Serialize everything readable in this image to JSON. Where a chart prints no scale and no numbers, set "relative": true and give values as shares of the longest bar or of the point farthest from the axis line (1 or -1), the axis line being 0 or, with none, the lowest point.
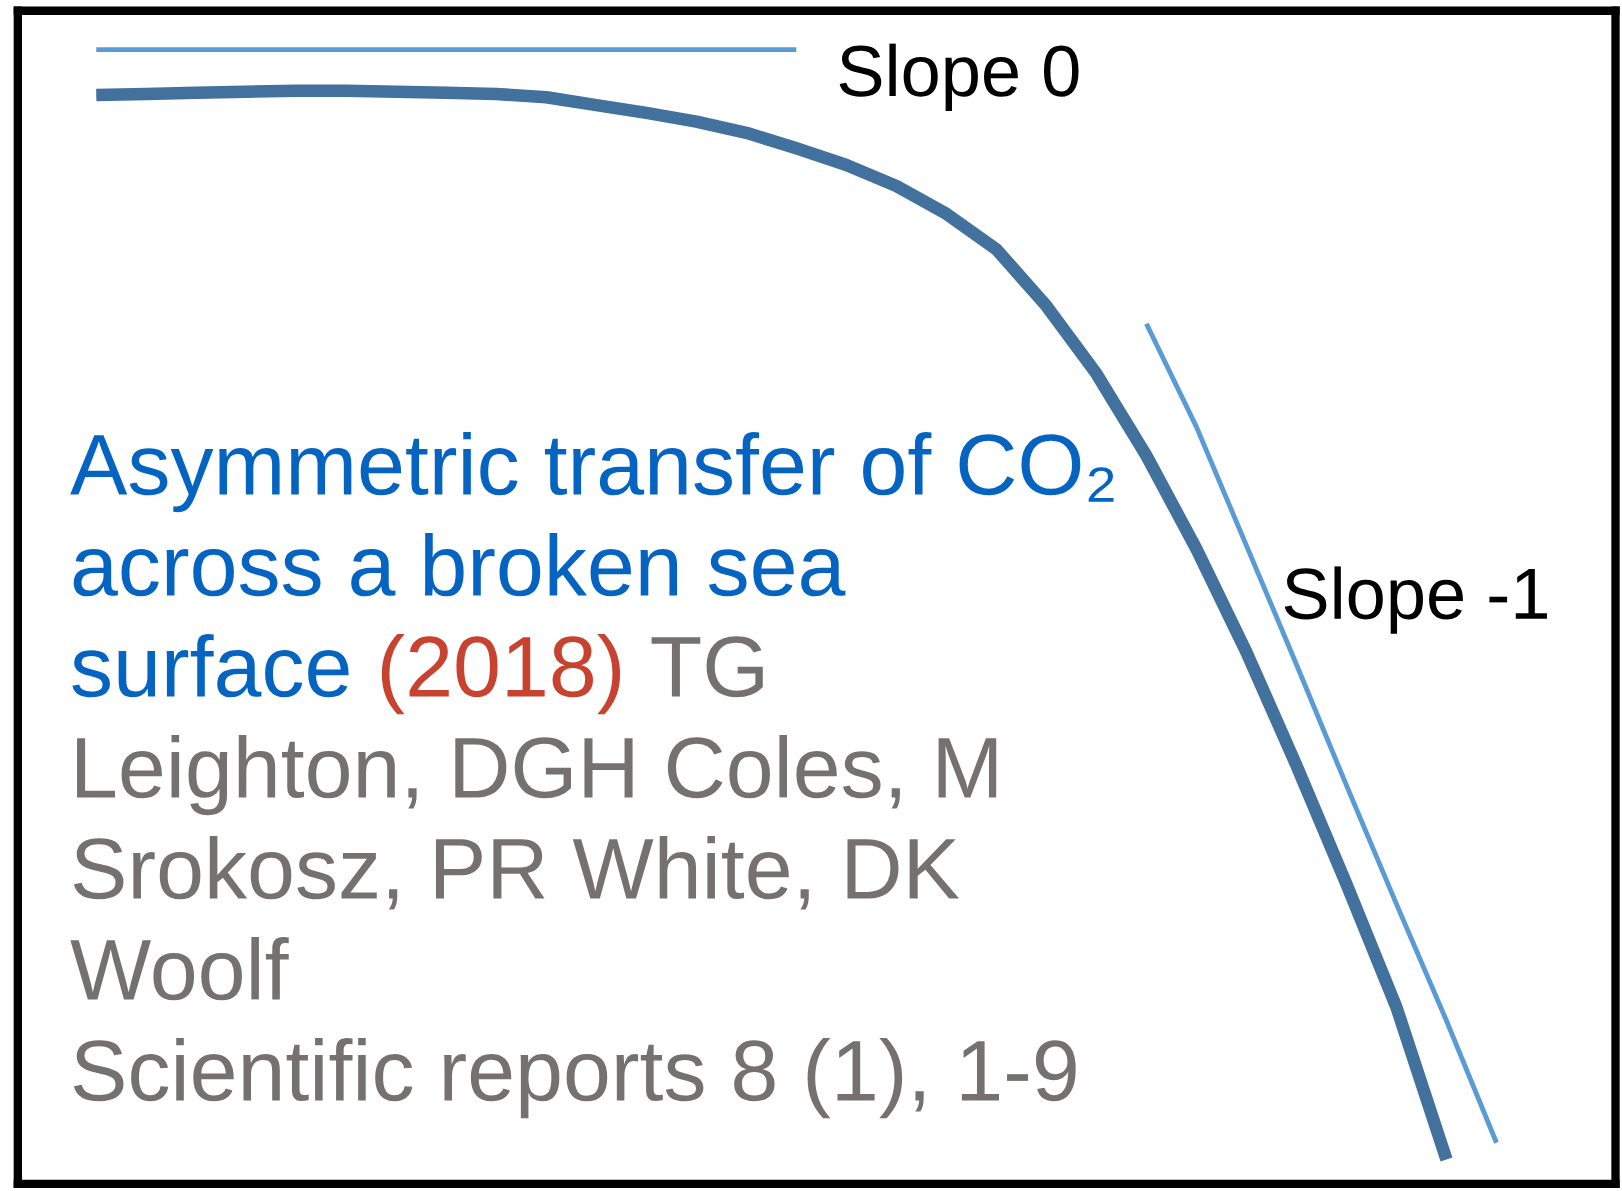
{
  "chart_data": {
    "type": "line",
    "relative": true,
    "legend": false,
    "marker": "none",
    "line_style": "solid",
    "categories": [
      null,
      null,
      null,
      null,
      null,
      null,
      null,
      null,
      null,
      null,
      null,
      null,
      null,
      null,
      null,
      null,
      null,
      null,
      null,
      null,
      null,
      null,
      null,
      null,
      null,
      null,
      null,
      null,
      null
    ],
    "series": [
      {
        "color": "#41719c",
        "values": [
          0.959,
          0.96,
          0.961,
          0.962,
          0.963,
          0.963,
          0.962,
          0.961,
          0.96,
          0.957,
          0.95,
          0.943,
          0.935,
          0.925,
          0.911,
          0.896,
          0.877,
          0.852,
          0.82,
          0.769,
          0.708,
          0.634,
          0.55,
          0.457,
          0.355,
          0.248,
          0.137,
          0.0,
          null
        ]
      },
      {
        "name": "Slope 0",
        "color": "#5b9bd5",
        "values": [
          1.0,
          1.0,
          1.0,
          1.0,
          1.0,
          1.0,
          1.0,
          1.0,
          1.0,
          1.0,
          1.0,
          1.0,
          1.0,
          1.0,
          1.0,
          null,
          null,
          null,
          null,
          null,
          null,
          null,
          null,
          null,
          null,
          null,
          null,
          null,
          null
        ]
      },
      {
        "name": "Slope -1",
        "color": "#5b9bd5",
        "values": [
          null,
          null,
          null,
          null,
          null,
          null,
          null,
          null,
          null,
          null,
          null,
          null,
          null,
          null,
          null,
          null,
          null,
          null,
          null,
          null,
          null,
          0.753,
          0.66,
          0.553,
          0.446,
          0.337,
          0.23,
          0.125,
          0.015
        ]
      }
    ],
    "annotations": [
      "Asymmetric transfer of CO₂ across a broken sea surface",
      "(2018)",
      "TG Leighton, DGH Coles, M Srokosz, PR White, DK Woolf",
      "Scientific reports 8 (1), 1-9"
    ]
  }
}
